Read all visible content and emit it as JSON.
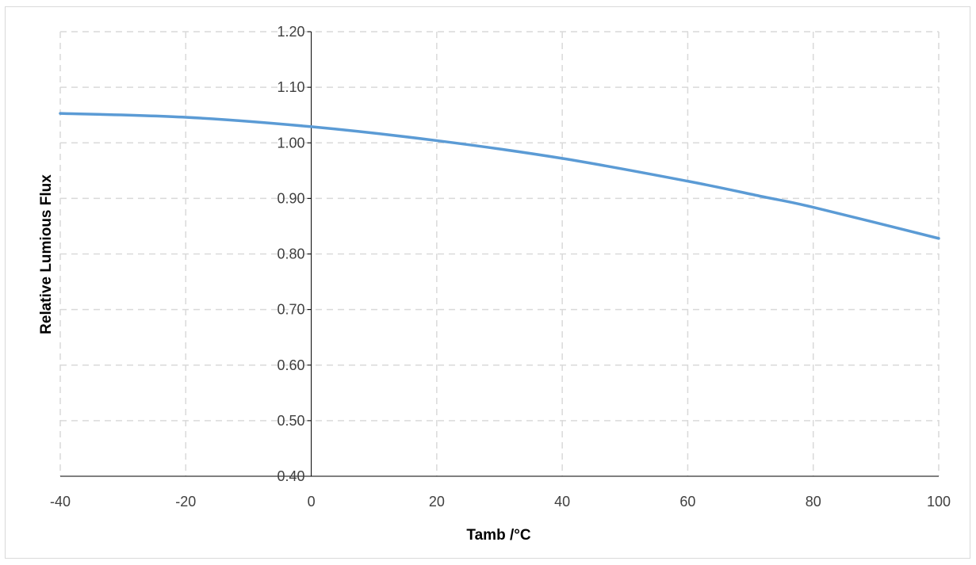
{
  "chart_data": {
    "type": "line",
    "title": "",
    "xlabel": "Tamb /°C",
    "ylabel": "Relative Lumious Flux",
    "xlim": [
      -40,
      100
    ],
    "ylim": [
      0.4,
      1.2
    ],
    "x_ticks": [
      -40,
      -20,
      0,
      20,
      40,
      60,
      80,
      100
    ],
    "x_tick_labels": [
      "-40",
      "-20",
      "0",
      "20",
      "40",
      "60",
      "80",
      "100"
    ],
    "y_ticks": [
      0.4,
      0.5,
      0.6,
      0.7,
      0.8,
      0.9,
      1.0,
      1.1,
      1.2
    ],
    "y_tick_labels": [
      "0.40",
      "0.50",
      "0.60",
      "0.70",
      "0.80",
      "0.90",
      "1.00",
      "1.10",
      "1.20"
    ],
    "grid": true,
    "grid_style": "dashed",
    "legend": "none",
    "series": [
      {
        "color": "#5b9bd5",
        "x": [
          -40,
          -20,
          0,
          20,
          40,
          60,
          72,
          80,
          100
        ],
        "y": [
          1.053,
          1.046,
          1.029,
          1.004,
          0.972,
          0.931,
          0.903,
          0.884,
          0.828
        ]
      }
    ],
    "colors": {
      "grid": "#d9d9d9",
      "axis": "#000000",
      "frame": "#d9d9d9"
    }
  }
}
